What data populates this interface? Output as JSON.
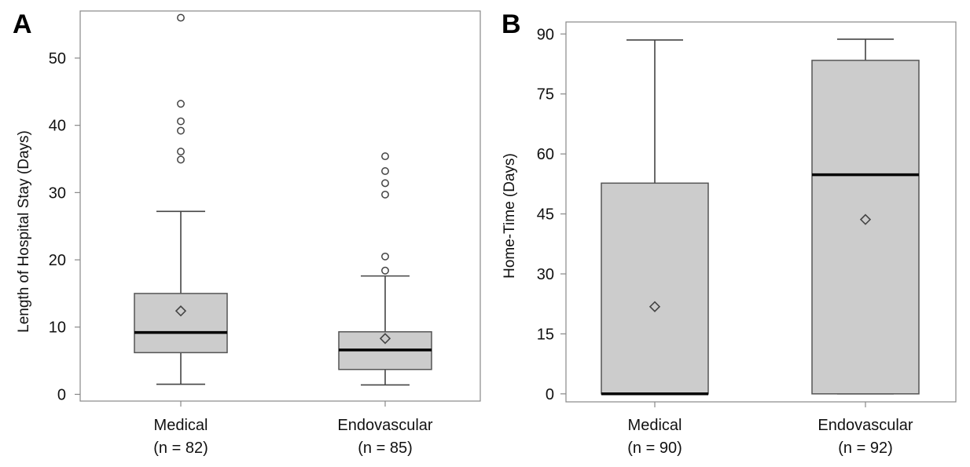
{
  "chart_data": [
    {
      "type": "boxplot",
      "panel": "A",
      "title": "",
      "ylabel": "Length of Hospital Stay (Days)",
      "xlabel": "",
      "ylim": [
        -1,
        57
      ],
      "yticks": [
        0,
        10,
        20,
        30,
        40,
        50
      ],
      "categories": [
        {
          "label": "Medical",
          "n_label": "(n = 82)"
        },
        {
          "label": "Endovascular",
          "n_label": "(n = 85)"
        }
      ],
      "boxes": [
        {
          "whisker_low": 1.5,
          "q1": 6.2,
          "median": 9.2,
          "q3": 15.0,
          "whisker_high": 27.2,
          "mean": 12.4,
          "outliers": [
            34.9,
            36.1,
            39.2,
            40.6,
            43.2,
            56.0
          ]
        },
        {
          "whisker_low": 1.4,
          "q1": 3.7,
          "median": 6.6,
          "q3": 9.3,
          "whisker_high": 17.6,
          "mean": 8.3,
          "outliers": [
            18.4,
            20.5,
            29.7,
            31.4,
            33.2,
            35.4
          ]
        }
      ]
    },
    {
      "type": "boxplot",
      "panel": "B",
      "title": "",
      "ylabel": "Home-Time (Days)",
      "xlabel": "",
      "ylim": [
        -2,
        93
      ],
      "yticks": [
        0,
        15,
        30,
        45,
        60,
        75,
        90
      ],
      "categories": [
        {
          "label": "Medical",
          "n_label": "(n = 90)"
        },
        {
          "label": "Endovascular",
          "n_label": "(n = 92)"
        }
      ],
      "boxes": [
        {
          "whisker_low": 0,
          "q1": 0,
          "median": 0,
          "q3": 52.7,
          "whisker_high": 88.5,
          "mean": 21.8,
          "outliers": []
        },
        {
          "whisker_low": 0,
          "q1": 0,
          "median": 54.8,
          "q3": 83.4,
          "whisker_high": 88.7,
          "mean": 43.6,
          "outliers": []
        }
      ]
    }
  ],
  "colors": {
    "box_fill": "#cccccc",
    "box_stroke": "#555555",
    "median": "#000000",
    "frame": "#888888",
    "whisker": "#444444",
    "outlier_stroke": "#444444",
    "mean_stroke": "#444444"
  }
}
